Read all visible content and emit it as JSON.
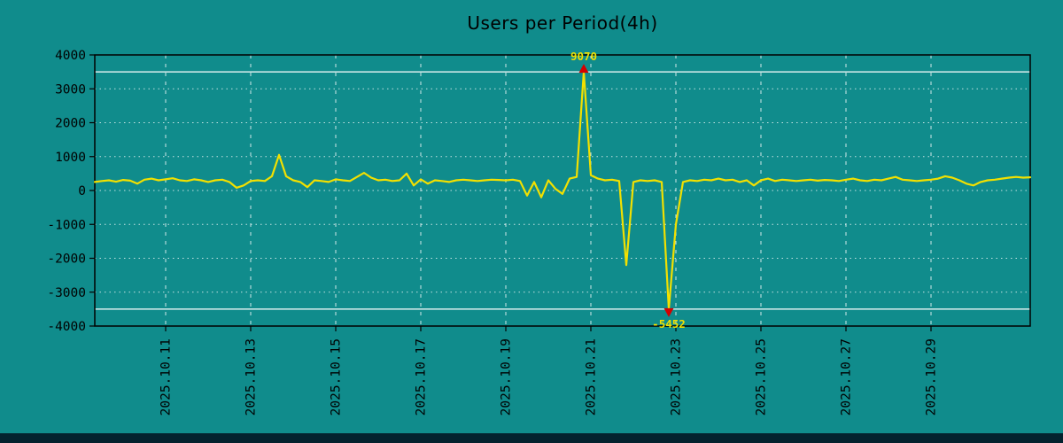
{
  "title": "Users per Period(4h)",
  "colors": {
    "background": "#108c8c",
    "line": "#f2e000",
    "marker": "#d40000",
    "grid": "#ffffff",
    "clip_line": "#ffffff",
    "text": "#000000",
    "annotation": "#f2e000",
    "border": "#000000",
    "footer": "#03222e"
  },
  "chart_data": {
    "type": "line",
    "title": "Users per Period(4h)",
    "ylabel": "",
    "xlabel": "",
    "ylim": [
      -4000,
      4000
    ],
    "interval_hours": 4,
    "x_start": "2025.10.09 08:00",
    "grid": true,
    "y_ticks": [
      4000,
      3000,
      2000,
      1000,
      0,
      -1000,
      -2000,
      -3000,
      -4000
    ],
    "x_ticks": [
      {
        "label": "2025.10.11",
        "index": 10
      },
      {
        "label": "2025.10.13",
        "index": 22
      },
      {
        "label": "2025.10.15",
        "index": 34
      },
      {
        "label": "2025.10.17",
        "index": 46
      },
      {
        "label": "2025.10.19",
        "index": 58
      },
      {
        "label": "2025.10.21",
        "index": 70
      },
      {
        "label": "2025.10.23",
        "index": 82
      },
      {
        "label": "2025.10.25",
        "index": 94
      },
      {
        "label": "2025.10.27",
        "index": 106
      },
      {
        "label": "2025.10.29",
        "index": 118
      }
    ],
    "clip_lines": [
      3500,
      -3500
    ],
    "annotations": [
      {
        "label": "9070",
        "index": 69,
        "value": 9070,
        "direction": "up"
      },
      {
        "label": "-5452",
        "index": 81,
        "value": -5452,
        "direction": "down"
      }
    ],
    "values": [
      250,
      280,
      300,
      260,
      310,
      290,
      200,
      320,
      350,
      300,
      330,
      360,
      300,
      280,
      330,
      300,
      250,
      300,
      320,
      250,
      80,
      150,
      280,
      300,
      280,
      420,
      1050,
      420,
      300,
      250,
      100,
      300,
      280,
      250,
      330,
      300,
      280,
      400,
      520,
      380,
      300,
      320,
      280,
      300,
      500,
      150,
      330,
      200,
      300,
      280,
      250,
      300,
      320,
      300,
      280,
      300,
      320,
      310,
      300,
      320,
      280,
      -150,
      250,
      -200,
      300,
      50,
      -100,
      350,
      400,
      9070,
      450,
      350,
      300,
      320,
      280,
      -2200,
      250,
      300,
      280,
      300,
      250,
      -5452,
      -1000,
      250,
      300,
      280,
      320,
      300,
      350,
      300,
      320,
      250,
      300,
      150,
      300,
      350,
      280,
      320,
      300,
      280,
      300,
      320,
      290,
      310,
      300,
      280,
      320,
      350,
      300,
      280,
      320,
      300,
      350,
      400,
      320,
      300,
      280,
      300,
      320,
      350,
      420,
      380,
      300,
      200,
      150,
      250,
      300,
      320,
      350,
      380,
      400,
      380,
      390
    ]
  }
}
